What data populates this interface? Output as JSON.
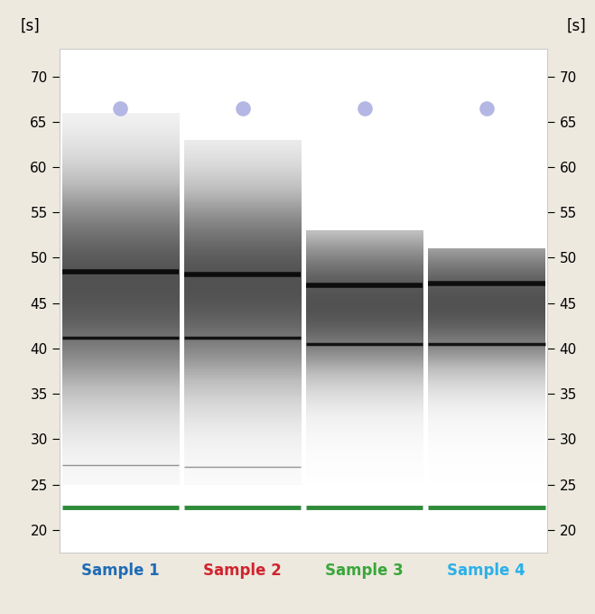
{
  "chart_data": {
    "type": "gel",
    "y_label": "[s]",
    "ylim": [
      17.5,
      73
    ],
    "yticks": [
      20,
      25,
      30,
      35,
      40,
      45,
      50,
      55,
      60,
      65,
      70
    ],
    "lower_marker": 22.5,
    "lower_marker_color": "#2e8b3a",
    "upper_marker": 66.5,
    "upper_marker_color": "#b4b6e4",
    "series": [
      {
        "name": "Sample 1",
        "color": "#1f6bb5",
        "bands": [
          48.5,
          41.2,
          27.2
        ],
        "smear": [
          25,
          66
        ],
        "smear_peak": 47
      },
      {
        "name": "Sample 2",
        "color": "#d0242e",
        "bands": [
          48.2,
          41.2,
          27.0
        ],
        "smear": [
          25,
          63
        ],
        "smear_peak": 47
      },
      {
        "name": "Sample 3",
        "color": "#3aa63a",
        "bands": [
          47.0,
          40.5
        ],
        "smear": [
          25,
          53
        ],
        "smear_peak": 45
      },
      {
        "name": "Sample 4",
        "color": "#2ab0e8",
        "bands": [
          47.2,
          40.5
        ],
        "smear": [
          25,
          51
        ],
        "smear_peak": 45
      }
    ]
  }
}
